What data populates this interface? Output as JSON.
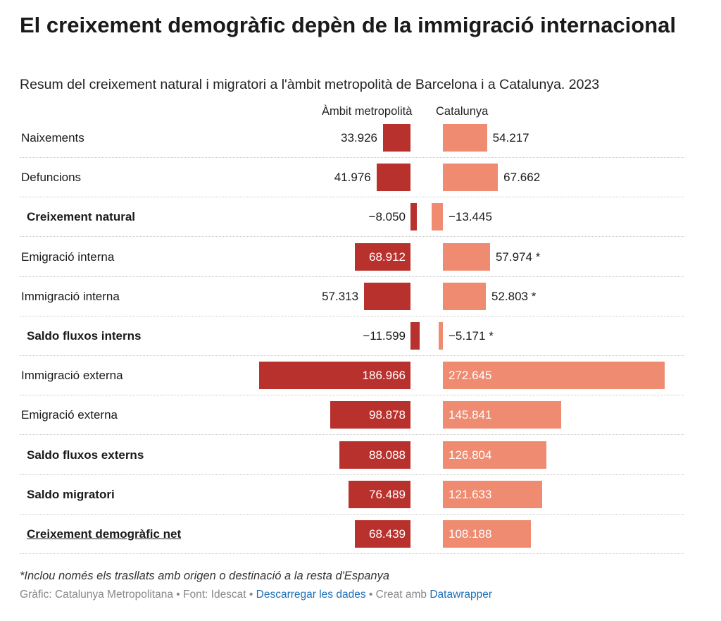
{
  "header": {
    "title": "El creixement demogràfic depèn de la immigració internacional",
    "subtitle": "Resum del creixement natural i migratori a l'àmbit metropolità de Barcelona i a Catalunya. 2023"
  },
  "chart_data": {
    "type": "bar",
    "layout": "diverging-split",
    "columns": [
      "Àmbit metropolità",
      "Catalunya"
    ],
    "rows": [
      {
        "label": "Naixements",
        "metro": 33926,
        "metro_label": "33.926",
        "cat": 54217,
        "cat_label": "54.217",
        "bold": false,
        "underline": false
      },
      {
        "label": "Defuncions",
        "metro": 41976,
        "metro_label": "41.976",
        "cat": 67662,
        "cat_label": "67.662",
        "bold": false,
        "underline": false
      },
      {
        "label": "Creixement natural",
        "metro": -8050,
        "metro_label": "−8.050",
        "cat": -13445,
        "cat_label": "−13.445",
        "bold": true,
        "underline": false
      },
      {
        "label": "Emigració interna",
        "metro": 68912,
        "metro_label": "68.912",
        "cat": 57974,
        "cat_label": "57.974 *",
        "bold": false,
        "underline": false
      },
      {
        "label": "Immigració interna",
        "metro": 57313,
        "metro_label": "57.313",
        "cat": 52803,
        "cat_label": "52.803 *",
        "bold": false,
        "underline": false
      },
      {
        "label": "Saldo fluxos interns",
        "metro": -11599,
        "metro_label": "−11.599",
        "cat": -5171,
        "cat_label": "−5.171 *",
        "bold": true,
        "underline": false
      },
      {
        "label": "Immigració externa",
        "metro": 186966,
        "metro_label": "186.966",
        "cat": 272645,
        "cat_label": "272.645",
        "bold": false,
        "underline": false
      },
      {
        "label": "Emigració externa",
        "metro": 98878,
        "metro_label": "98.878",
        "cat": 145841,
        "cat_label": "145.841",
        "bold": false,
        "underline": false
      },
      {
        "label": "Saldo fluxos externs",
        "metro": 88088,
        "metro_label": "88.088",
        "cat": 126804,
        "cat_label": "126.804",
        "bold": true,
        "underline": false
      },
      {
        "label": "Saldo migratori",
        "metro": 76489,
        "metro_label": "76.489",
        "cat": 121633,
        "cat_label": "121.633",
        "bold": true,
        "underline": false
      },
      {
        "label": "Creixement demogràfic net",
        "metro": 68439,
        "metro_label": "68.439",
        "cat": 108188,
        "cat_label": "108.188",
        "bold": true,
        "underline": true
      }
    ],
    "colors": {
      "metro": "#b9312c",
      "cat": "#ee8b70"
    }
  },
  "notes": "*Inclou només els trasllats amb origen o destinació a la resta d'Espanya",
  "source": {
    "prefix": "Gràfic: Catalunya Metropolitana • Font: Idescat • ",
    "download_link": "Descarregar les dades",
    "middle": " • Creat amb ",
    "tool_link": "Datawrapper"
  }
}
